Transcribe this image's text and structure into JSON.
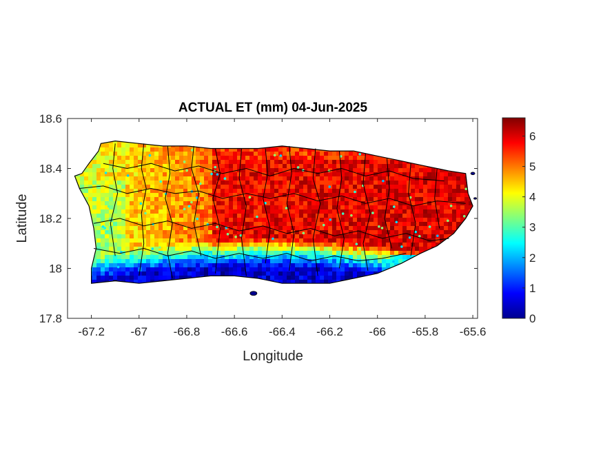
{
  "chart_data": {
    "type": "heatmap",
    "title": "ACTUAL ET (mm) 04-Jun-2025",
    "xlabel": "Longitude",
    "ylabel": "Latitude",
    "xlim": [
      -67.3,
      -65.58
    ],
    "ylim": [
      17.8,
      18.6
    ],
    "xticks": [
      -67.2,
      -67,
      -66.8,
      -66.6,
      -66.4,
      -66.2,
      -66,
      -65.8,
      -65.6
    ],
    "xtick_labels": [
      "-67.2",
      "-67",
      "-66.8",
      "-66.6",
      "-66.4",
      "-66.2",
      "-66",
      "-65.8",
      "-65.6"
    ],
    "yticks": [
      17.8,
      18,
      18.2,
      18.4,
      18.6
    ],
    "ytick_labels": [
      "17.8",
      "18",
      "18.2",
      "18.4",
      "18.6"
    ],
    "colorbar": {
      "colormap": "jet",
      "range": [
        0,
        6.6
      ],
      "ticks": [
        0,
        1,
        2,
        3,
        4,
        5,
        6
      ],
      "tick_labels": [
        "0",
        "1",
        "2",
        "3",
        "4",
        "5",
        "6"
      ]
    },
    "grid": false,
    "pattern": {
      "north_coast_value": 5.2,
      "interior_value": 5.8,
      "west_value": 3.8,
      "east_value": 6.0,
      "south_coast_value": 0.5
    }
  }
}
